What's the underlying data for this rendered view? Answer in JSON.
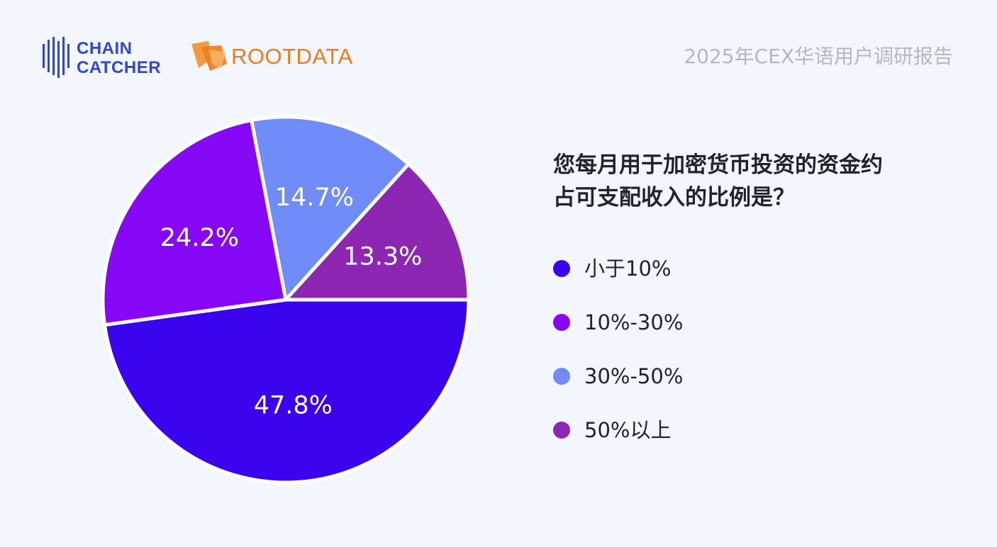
{
  "header": {
    "chaincatcher_line1": "CHAIN",
    "chaincatcher_line2": "CATCHER",
    "rootdata_text": "ROOTDATA",
    "report_title": "2025年CEX华语用户调研报告"
  },
  "question": {
    "line1": "您每月用于加密货币投资的资金约",
    "line2": "占可支配收入的比例是？"
  },
  "chart_data": {
    "type": "pie",
    "categories": [
      "小于10%",
      "10%-30%",
      "30%-50%",
      "50%以上"
    ],
    "values": [
      47.8,
      24.2,
      14.7,
      13.3
    ],
    "value_labels": [
      "47.8%",
      "24.2%",
      "14.7%",
      "13.3%"
    ],
    "colors": [
      "#3a04ef",
      "#8708f7",
      "#6f8cf8",
      "#8d27b3"
    ],
    "legend_placement": "right",
    "start_angle": "3 o'clock",
    "direction": "clockwise"
  }
}
